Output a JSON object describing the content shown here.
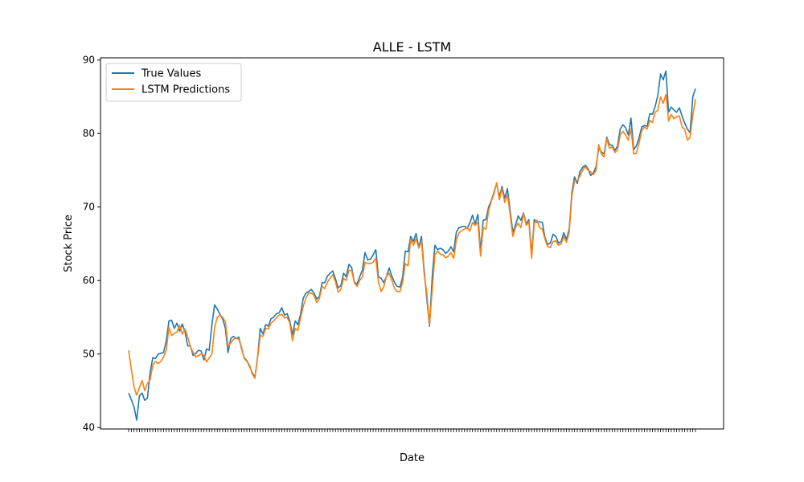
{
  "chart_data": {
    "type": "line",
    "title": "ALLE - LSTM",
    "xlabel": "Date",
    "ylabel": "Stock Price",
    "ylim": [
      39.8,
      90.3
    ],
    "yticks": [
      40,
      50,
      60,
      70,
      80,
      90
    ],
    "grid": false,
    "legend_position": "top-left",
    "colors": {
      "True Values": "#1f77b4",
      "LSTM Predictions": "#ff7f0e"
    },
    "series": [
      {
        "name": "True Values",
        "values": [
          44.7,
          43.8,
          42.8,
          41.0,
          44.3,
          44.7,
          43.7,
          44.0,
          47.5,
          49.5,
          49.4,
          50.0,
          50.1,
          50.2,
          51.8,
          54.5,
          54.6,
          53.5,
          54.2,
          53.1,
          54.1,
          53.0,
          51.1,
          51.1,
          49.8,
          50.1,
          50.5,
          50.4,
          49.2,
          50.7,
          50.5,
          54.0,
          56.7,
          56.1,
          55.4,
          54.8,
          53.5,
          50.2,
          52.1,
          52.4,
          52.1,
          52.3,
          50.8,
          49.5,
          49.1,
          48.3,
          47.5,
          46.8,
          49.6,
          53.5,
          52.7,
          54.0,
          53.8,
          54.8,
          55.0,
          55.5,
          55.6,
          56.3,
          55.3,
          55.5,
          54.5,
          52.6,
          54.5,
          54.0,
          55.4,
          57.6,
          58.3,
          58.5,
          58.8,
          58.3,
          57.5,
          57.8,
          59.7,
          59.7,
          60.6,
          61.0,
          61.3,
          60.2,
          59.0,
          59.3,
          61.0,
          60.5,
          62.2,
          61.8,
          59.8,
          59.5,
          60.5,
          61.4,
          63.8,
          62.8,
          62.9,
          63.5,
          64.2,
          60.5,
          60.3,
          59.7,
          60.6,
          61.7,
          60.6,
          59.7,
          59.2,
          59.1,
          60.5,
          64.0,
          63.9,
          66.0,
          65.3,
          66.4,
          64.5,
          66.0,
          61.5,
          57.5,
          53.8,
          60.5,
          64.8,
          64.2,
          64.4,
          64.2,
          63.7,
          64.0,
          64.6,
          63.9,
          66.6,
          67.2,
          67.3,
          67.4,
          67.1,
          67.8,
          68.9,
          67.7,
          69.0,
          64.0,
          68.2,
          68.3,
          70.0,
          70.9,
          72.0,
          73.2,
          71.4,
          72.8,
          71.2,
          72.5,
          69.5,
          66.6,
          67.5,
          68.8,
          68.2,
          69.2,
          67.7,
          68.3,
          63.5,
          68.3,
          67.9,
          68.0,
          67.9,
          65.8,
          64.9,
          65.1,
          66.3,
          66.0,
          65.1,
          65.3,
          66.5,
          65.6,
          67.0,
          72.0,
          74.1,
          73.2,
          74.8,
          75.4,
          75.7,
          75.2,
          74.3,
          74.6,
          75.5,
          78.0,
          77.5,
          77.2,
          79.5,
          78.5,
          78.4,
          77.7,
          78.3,
          80.6,
          81.2,
          80.8,
          79.8,
          82.1,
          77.8,
          78.3,
          79.4,
          80.9,
          81.1,
          81.0,
          82.7,
          82.6,
          83.7,
          85.2,
          88.1,
          87.3,
          88.5,
          82.9,
          83.6,
          83.2,
          82.9,
          83.5,
          82.4,
          81.4,
          80.6,
          80.1,
          85.0,
          86.1
        ]
      },
      {
        "name": "LSTM Predictions",
        "values": [
          50.5,
          48.0,
          45.5,
          44.4,
          45.4,
          46.4,
          45.0,
          46.0,
          46.5,
          48.5,
          49.0,
          48.7,
          49.0,
          49.6,
          50.5,
          53.6,
          52.5,
          52.8,
          53.0,
          53.9,
          52.7,
          53.4,
          52.3,
          51.0,
          50.2,
          49.6,
          49.8,
          50.0,
          49.8,
          48.9,
          49.5,
          50.0,
          53.6,
          55.0,
          55.3,
          55.0,
          54.4,
          51.0,
          51.5,
          52.0,
          52.2,
          52.0,
          51.0,
          49.4,
          49.0,
          48.5,
          47.3,
          46.7,
          49.5,
          52.5,
          52.4,
          53.5,
          53.4,
          54.2,
          54.5,
          54.9,
          55.3,
          55.4,
          54.9,
          55.0,
          54.2,
          51.8,
          53.5,
          53.2,
          54.9,
          56.5,
          57.6,
          58.3,
          58.3,
          58.0,
          57.0,
          57.5,
          59.2,
          58.9,
          59.8,
          60.3,
          60.8,
          59.8,
          58.4,
          58.8,
          60.3,
          60.0,
          61.4,
          61.4,
          59.7,
          59.2,
          60.0,
          60.5,
          62.5,
          62.3,
          62.3,
          62.5,
          63.0,
          59.8,
          58.5,
          59.2,
          60.6,
          61.0,
          60.0,
          58.9,
          58.5,
          58.5,
          59.8,
          62.3,
          62.0,
          65.6,
          64.8,
          65.7,
          64.4,
          65.4,
          61.0,
          58.2,
          54.0,
          58.7,
          63.5,
          64.0,
          63.6,
          63.5,
          63.1,
          63.3,
          63.8,
          63.0,
          65.5,
          66.5,
          66.8,
          67.0,
          67.2,
          66.7,
          67.9,
          67.5,
          68.0,
          63.3,
          67.2,
          67.0,
          69.5,
          70.8,
          71.8,
          73.3,
          71.0,
          72.5,
          70.6,
          71.7,
          69.0,
          66.0,
          67.2,
          67.8,
          67.2,
          69.1,
          67.5,
          68.0,
          63.0,
          67.8,
          68.2,
          67.2,
          67.0,
          65.6,
          64.6,
          64.5,
          65.3,
          65.4,
          64.8,
          65.0,
          66.0,
          65.2,
          66.6,
          71.5,
          73.5,
          73.6,
          74.2,
          75.0,
          75.5,
          75.0,
          74.8,
          74.4,
          75.0,
          78.5,
          77.2,
          76.8,
          79.3,
          78.0,
          78.2,
          77.4,
          77.8,
          79.8,
          80.3,
          79.8,
          79.1,
          80.6,
          77.2,
          77.3,
          78.7,
          80.4,
          80.9,
          80.6,
          81.8,
          81.5,
          82.9,
          83.2,
          85.0,
          84.1,
          85.3,
          81.7,
          82.6,
          82.0,
          82.3,
          82.4,
          80.9,
          80.6,
          79.1,
          79.5,
          82.5,
          84.7
        ]
      }
    ]
  }
}
